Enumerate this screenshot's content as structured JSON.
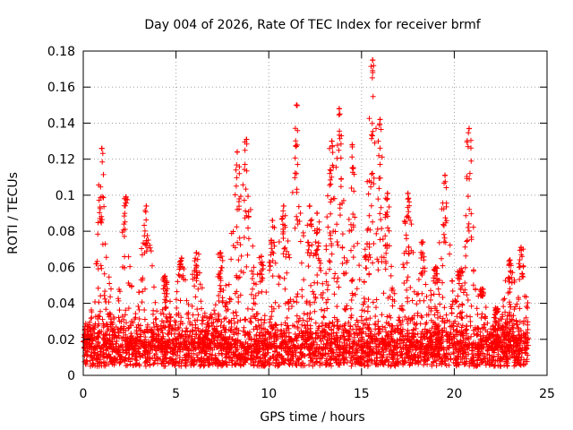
{
  "chart_data": {
    "type": "scatter",
    "title": "Day 004 of 2026, Rate Of TEC Index for receiver brmf",
    "xlabel": "GPS time / hours",
    "ylabel": "ROTI / TECUs",
    "xlim": [
      0,
      25
    ],
    "ylim": [
      0,
      0.18
    ],
    "xticks": [
      0,
      5,
      10,
      15,
      20,
      25
    ],
    "xtick_labels": [
      "0",
      "5",
      "10",
      "15",
      "20",
      "25"
    ],
    "yticks": [
      0,
      0.02,
      0.04,
      0.06,
      0.08,
      0.1,
      0.12,
      0.14,
      0.16,
      0.18
    ],
    "ytick_labels": [
      "0",
      "0.02",
      "0.04",
      "0.06",
      "0.08",
      "0.1",
      "0.12",
      "0.14",
      "0.16",
      "0.18"
    ],
    "grid": true,
    "marker": "+",
    "color": "#ff0000",
    "series": [
      {
        "name": "ROTI",
        "x_range": [
          0,
          24
        ],
        "baseline_range": [
          0.005,
          0.03
        ],
        "peaks": [
          {
            "x": 1.0,
            "y": 0.126
          },
          {
            "x": 2.3,
            "y": 0.099
          },
          {
            "x": 3.4,
            "y": 0.094
          },
          {
            "x": 4.4,
            "y": 0.055
          },
          {
            "x": 5.3,
            "y": 0.065
          },
          {
            "x": 6.1,
            "y": 0.068
          },
          {
            "x": 7.4,
            "y": 0.068
          },
          {
            "x": 8.3,
            "y": 0.124
          },
          {
            "x": 8.8,
            "y": 0.131
          },
          {
            "x": 9.6,
            "y": 0.066
          },
          {
            "x": 10.2,
            "y": 0.086
          },
          {
            "x": 10.8,
            "y": 0.094
          },
          {
            "x": 11.5,
            "y": 0.15
          },
          {
            "x": 12.2,
            "y": 0.094
          },
          {
            "x": 12.6,
            "y": 0.09
          },
          {
            "x": 13.4,
            "y": 0.13
          },
          {
            "x": 13.8,
            "y": 0.148
          },
          {
            "x": 14.5,
            "y": 0.128
          },
          {
            "x": 15.3,
            "y": 0.073
          },
          {
            "x": 15.6,
            "y": 0.175
          },
          {
            "x": 16.0,
            "y": 0.142
          },
          {
            "x": 16.4,
            "y": 0.101
          },
          {
            "x": 17.5,
            "y": 0.101
          },
          {
            "x": 18.3,
            "y": 0.074
          },
          {
            "x": 19.0,
            "y": 0.06
          },
          {
            "x": 19.5,
            "y": 0.111
          },
          {
            "x": 20.3,
            "y": 0.058
          },
          {
            "x": 20.8,
            "y": 0.137
          },
          {
            "x": 21.5,
            "y": 0.048
          },
          {
            "x": 22.3,
            "y": 0.035
          },
          {
            "x": 23.0,
            "y": 0.064
          },
          {
            "x": 23.6,
            "y": 0.071
          }
        ]
      }
    ]
  }
}
